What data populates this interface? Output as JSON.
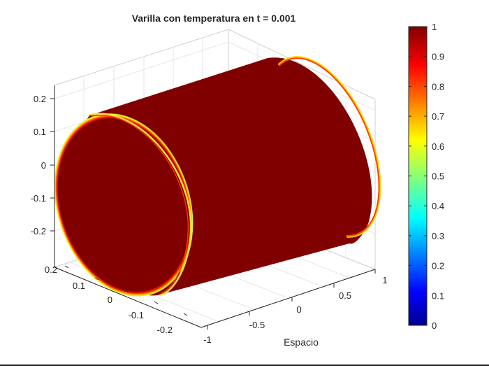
{
  "chart_data": {
    "type": "surface",
    "title": "Varilla con temperatura en t = 0.001",
    "xlabel": "Espacio",
    "ylabel": "",
    "zlabel": "",
    "x_ticks": [
      "-1",
      "-0.5",
      "0",
      "0.5",
      "1"
    ],
    "y_ticks": [
      "0.2",
      "0.1",
      "0",
      "-0.1",
      "-0.2"
    ],
    "z_ticks": [
      "0.2",
      "0.1",
      "0",
      "-0.1",
      "-0.2"
    ],
    "xlim": [
      -1,
      1
    ],
    "ylim": [
      -0.25,
      0.25
    ],
    "zlim": [
      -0.25,
      0.25
    ],
    "grid": true,
    "colormap": "jet",
    "colorbar": {
      "ticks": [
        "0",
        "0.1",
        "0.2",
        "0.3",
        "0.4",
        "0.5",
        "0.6",
        "0.7",
        "0.8",
        "0.9",
        "1"
      ],
      "range": [
        0,
        1
      ]
    },
    "surface": {
      "shape": "cylinder",
      "value_interior": 1,
      "value_boundary": 0.6,
      "color_interior": "#800000",
      "color_boundary_ring": "#ffd700"
    }
  }
}
